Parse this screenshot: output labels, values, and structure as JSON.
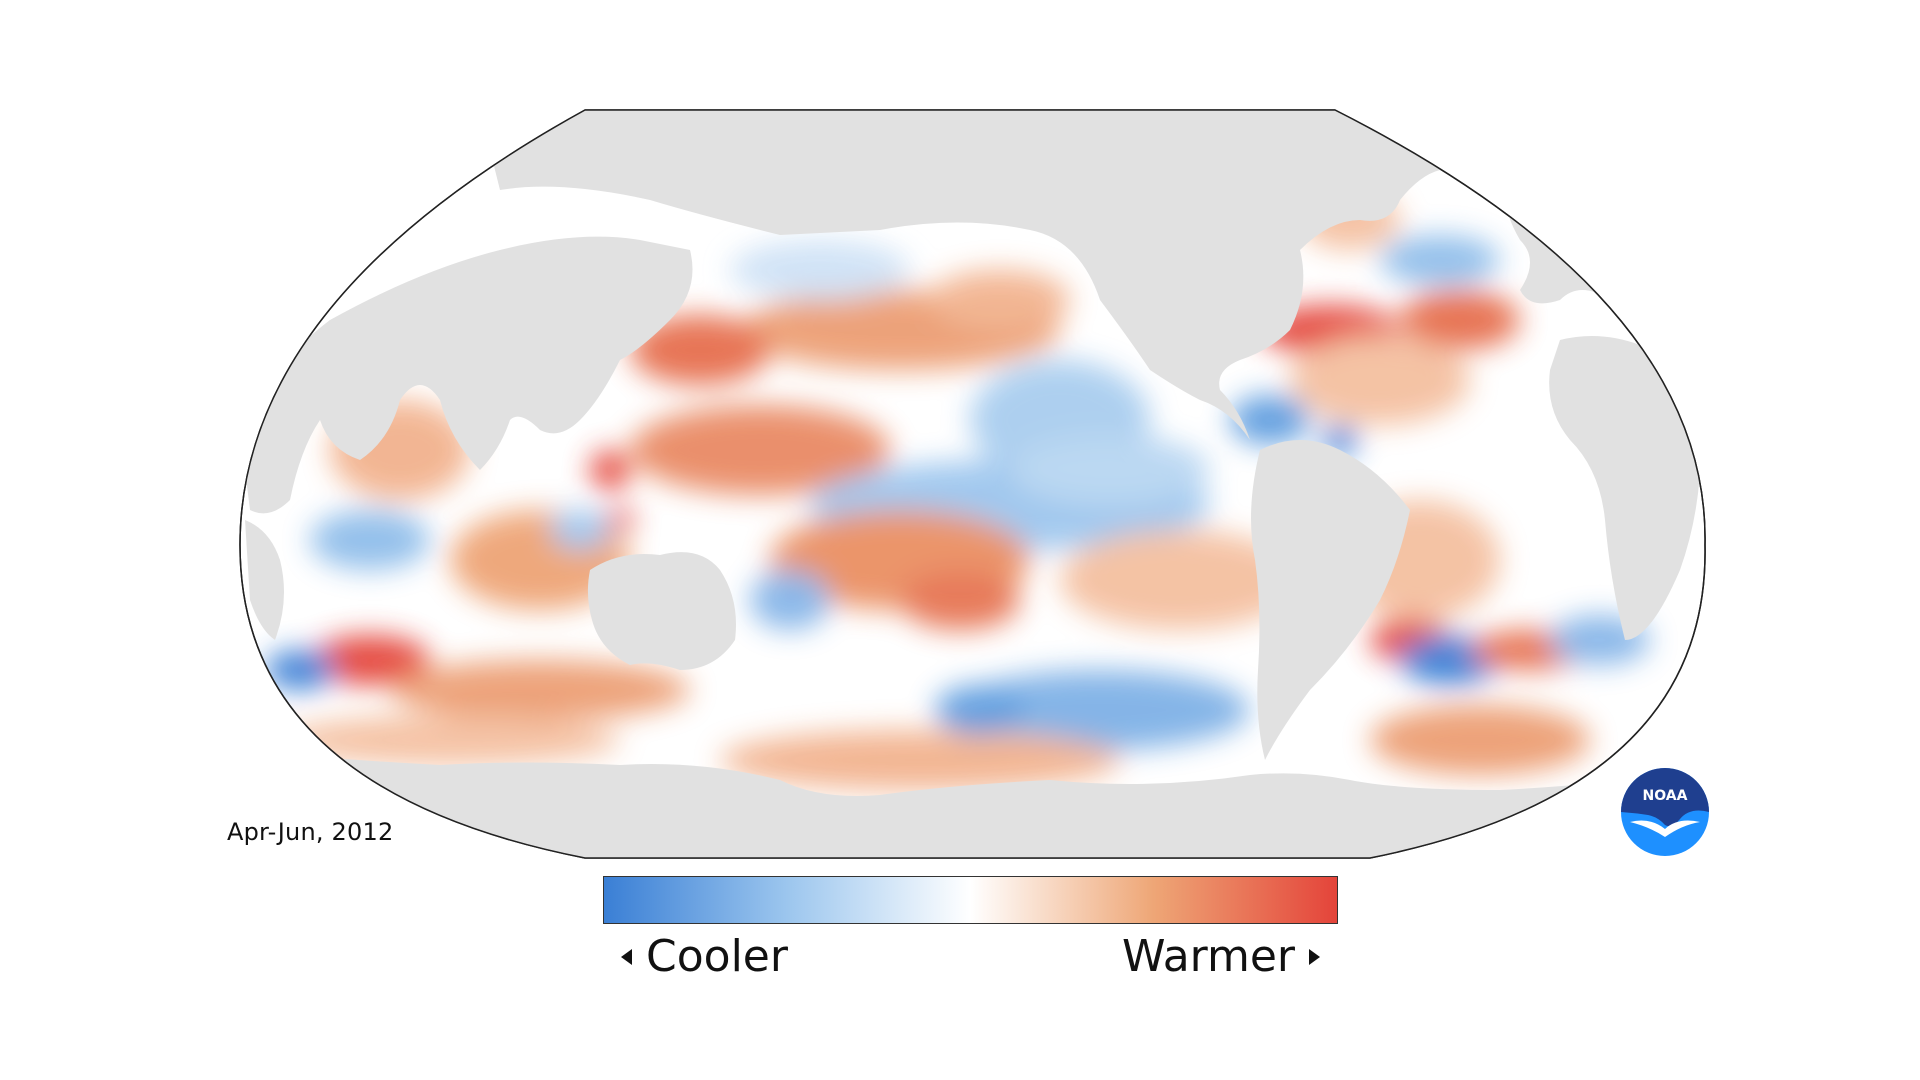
{
  "map": {
    "period_label": "Apr-Jun, 2012",
    "projection": "robinson",
    "land_color": "#e1e1e1",
    "ocean_neutral_color": "#ffffff",
    "outline_color": "#222222"
  },
  "legend": {
    "cooler_label": "Cooler",
    "warmer_label": "Warmer",
    "cool_color": "#3a7fd5",
    "neutral_color": "#ffffff",
    "warm_color": "#e4443a"
  },
  "logo": {
    "text": "NOAA",
    "icon": "noaa-logo-icon",
    "primary_color": "#1f5fa8",
    "accent_color": "#1e90ff"
  }
}
